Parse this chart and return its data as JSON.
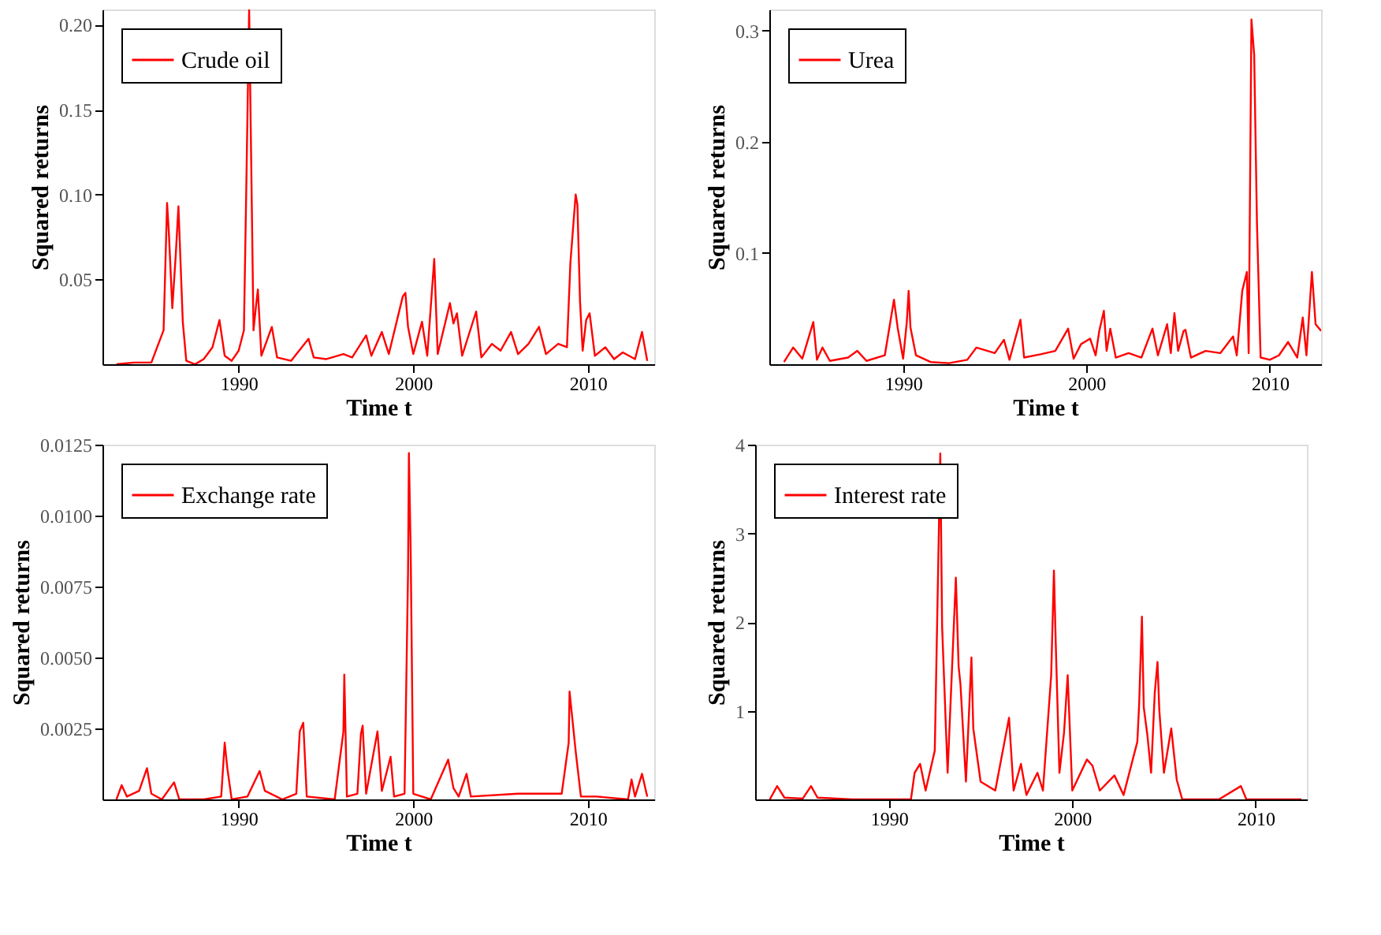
{
  "chart_data": [
    {
      "type": "line",
      "xlabel": "Time t",
      "ylabel": "Squared returns",
      "legend": "top left",
      "grid": false,
      "xlim": [
        1982.2,
        2013.8
      ],
      "xticks": [
        1990,
        2000,
        2010
      ],
      "ylim": [
        0,
        0.209
      ],
      "yticks": [
        0.05,
        {
          "value": 0.1,
          "label": "0.10"
        },
        0.15,
        {
          "value": 0.2,
          "label": "0.20"
        }
      ],
      "series": [
        {
          "name": "Crude oil",
          "color": "#ff0000",
          "x": [
            1983.0,
            1984.0,
            1985.0,
            1985.7,
            1985.9,
            1986.0,
            1986.2,
            1986.4,
            1986.55,
            1986.8,
            1987.0,
            1987.5,
            1988.0,
            1988.5,
            1988.9,
            1989.2,
            1989.6,
            1990.0,
            1990.3,
            1990.45,
            1990.6,
            1990.7,
            1990.85,
            1991.0,
            1991.1,
            1991.3,
            1991.9,
            1992.2,
            1993.0,
            1994.0,
            1994.3,
            1995.0,
            1996.0,
            1996.5,
            1997.3,
            1997.6,
            1998.2,
            1998.6,
            1999.4,
            1999.55,
            1999.7,
            2000.0,
            2000.5,
            2000.8,
            2001.2,
            2001.4,
            2002.1,
            2002.3,
            2002.5,
            2002.8,
            2003.6,
            2003.9,
            2004.5,
            2005.0,
            2005.6,
            2006.0,
            2006.6,
            2007.2,
            2007.6,
            2008.3,
            2008.8,
            2009.0,
            2009.3,
            2009.4,
            2009.55,
            2009.7,
            2009.9,
            2010.1,
            2010.4,
            2011.0,
            2011.5,
            2012.0,
            2012.7,
            2013.1,
            2013.4
          ],
          "values": [
            0.0,
            0.001,
            0.001,
            0.02,
            0.095,
            0.078,
            0.033,
            0.065,
            0.093,
            0.025,
            0.002,
            0.0,
            0.003,
            0.01,
            0.026,
            0.005,
            0.002,
            0.008,
            0.02,
            0.112,
            0.209,
            0.133,
            0.02,
            0.035,
            0.044,
            0.005,
            0.022,
            0.004,
            0.002,
            0.015,
            0.004,
            0.003,
            0.006,
            0.004,
            0.017,
            0.005,
            0.019,
            0.006,
            0.04,
            0.042,
            0.022,
            0.006,
            0.025,
            0.005,
            0.062,
            0.006,
            0.036,
            0.024,
            0.03,
            0.005,
            0.031,
            0.004,
            0.012,
            0.008,
            0.019,
            0.006,
            0.012,
            0.022,
            0.006,
            0.012,
            0.01,
            0.06,
            0.1,
            0.094,
            0.037,
            0.008,
            0.026,
            0.03,
            0.005,
            0.01,
            0.003,
            0.007,
            0.003,
            0.019,
            0.002
          ]
        }
      ]
    },
    {
      "type": "line",
      "xlabel": "Time t",
      "ylabel": "Squared returns",
      "legend": "top left",
      "grid": false,
      "xlim": [
        1982.7,
        2012.8
      ],
      "xticks": [
        1990,
        2000,
        2010
      ],
      "ylim": [
        0,
        0.319
      ],
      "yticks": [
        0.1,
        0.2,
        0.3
      ],
      "series": [
        {
          "name": "Urea",
          "color": "#ff0000",
          "x": [
            1983.5,
            1984.0,
            1984.5,
            1985.1,
            1985.3,
            1985.6,
            1986.0,
            1987.0,
            1987.5,
            1988.0,
            1989.0,
            1989.5,
            1989.7,
            1990.0,
            1990.2,
            1990.3,
            1990.4,
            1990.7,
            1991.5,
            1992.5,
            1993.5,
            1994.0,
            1995.0,
            1995.5,
            1995.8,
            1996.4,
            1996.6,
            1997.5,
            1998.3,
            1999.0,
            1999.3,
            1999.7,
            2000.2,
            2000.5,
            2000.7,
            2000.95,
            2001.1,
            2001.3,
            2001.6,
            2002.3,
            2003.0,
            2003.6,
            2003.9,
            2004.4,
            2004.6,
            2004.8,
            2005.0,
            2005.3,
            2005.4,
            2005.7,
            2006.5,
            2007.3,
            2008.0,
            2008.2,
            2008.5,
            2008.75,
            2008.85,
            2009.0,
            2009.15,
            2009.3,
            2009.5,
            2010.0,
            2010.5,
            2011.0,
            2011.5,
            2011.8,
            2012.0,
            2012.3,
            2012.5,
            2012.8
          ],
          "values": [
            0.002,
            0.015,
            0.005,
            0.038,
            0.004,
            0.015,
            0.003,
            0.006,
            0.012,
            0.003,
            0.008,
            0.058,
            0.033,
            0.005,
            0.038,
            0.066,
            0.033,
            0.008,
            0.002,
            0.001,
            0.004,
            0.015,
            0.01,
            0.022,
            0.004,
            0.04,
            0.006,
            0.009,
            0.012,
            0.032,
            0.005,
            0.018,
            0.023,
            0.008,
            0.03,
            0.048,
            0.012,
            0.032,
            0.006,
            0.01,
            0.006,
            0.032,
            0.008,
            0.036,
            0.01,
            0.046,
            0.012,
            0.03,
            0.031,
            0.006,
            0.012,
            0.01,
            0.025,
            0.008,
            0.066,
            0.083,
            0.01,
            0.31,
            0.278,
            0.128,
            0.006,
            0.004,
            0.008,
            0.02,
            0.006,
            0.042,
            0.008,
            0.083,
            0.036,
            0.03
          ]
        }
      ]
    },
    {
      "type": "line",
      "xlabel": "Time t",
      "ylabel": "Squared returns",
      "legend": "top left",
      "grid": false,
      "xlim": [
        1982.2,
        2013.8
      ],
      "xticks": [
        1990,
        2000,
        2010
      ],
      "ylim": [
        0,
        0.0125
      ],
      "yticks": [
        0.0025,
        {
          "value": 0.005,
          "label": "0.0050"
        },
        {
          "value": 0.0075,
          "label": "0.0075"
        },
        {
          "value": 0.01,
          "label": "0.0100"
        },
        {
          "value": 0.0125,
          "label": "0.0125"
        }
      ],
      "series": [
        {
          "name": "Exchange rate",
          "color": "#ff0000",
          "x": [
            1983.0,
            1983.3,
            1983.6,
            1984.3,
            1984.75,
            1985.0,
            1985.6,
            1986.3,
            1986.6,
            1988.0,
            1989.0,
            1989.2,
            1989.35,
            1989.6,
            1990.5,
            1991.2,
            1991.5,
            1992.5,
            1993.3,
            1993.5,
            1993.7,
            1993.9,
            1995.5,
            1996.0,
            1996.05,
            1996.2,
            1996.8,
            1997.0,
            1997.1,
            1997.3,
            1997.95,
            1998.2,
            1998.7,
            1998.9,
            1999.5,
            1999.7,
            1999.75,
            1999.85,
            2000.0,
            2001.0,
            2002.0,
            2002.3,
            2002.6,
            2003.05,
            2003.3,
            2006.0,
            2008.5,
            2008.9,
            2008.95,
            2009.15,
            2009.3,
            2009.6,
            2010.5,
            2012.3,
            2012.5,
            2012.7,
            2013.1,
            2013.4
          ],
          "values": [
            0.0,
            0.0005,
            0.0001,
            0.0003,
            0.0011,
            0.0002,
            0.0,
            0.0006,
            0.0,
            0.0,
            0.0001,
            0.002,
            0.0011,
            0.0,
            0.0001,
            0.001,
            0.0003,
            0.0,
            0.0002,
            0.0024,
            0.0027,
            0.0001,
            0.0,
            0.0024,
            0.0044,
            0.0001,
            0.0002,
            0.0023,
            0.0026,
            0.0002,
            0.0024,
            0.0003,
            0.0015,
            0.0001,
            0.0002,
            0.008,
            0.0122,
            0.0088,
            0.0002,
            0.0,
            0.0014,
            0.0004,
            0.0001,
            0.0009,
            0.0001,
            0.0002,
            0.0002,
            0.002,
            0.0038,
            0.0026,
            0.0017,
            0.0001,
            0.0001,
            0.0,
            0.0007,
            0.0001,
            0.0009,
            0.0001
          ]
        }
      ]
    },
    {
      "type": "line",
      "xlabel": "Time t",
      "ylabel": "Squared returns",
      "legend": "top left",
      "grid": false,
      "xlim": [
        1982.7,
        2012.8
      ],
      "xticks": [
        1990,
        2000,
        2010
      ],
      "ylim": [
        0,
        4
      ],
      "yticks": [
        1,
        2,
        3,
        4
      ],
      "series": [
        {
          "name": "Interest rate",
          "color": "#ff0000",
          "x": [
            1983.5,
            1983.9,
            1984.3,
            1985.3,
            1985.75,
            1986.1,
            1988.0,
            1991.2,
            1991.4,
            1991.7,
            1992.0,
            1992.5,
            1992.8,
            1992.9,
            1993.2,
            1993.65,
            1993.8,
            1993.9,
            1994.2,
            1994.5,
            1994.6,
            1995.0,
            1995.8,
            1996.55,
            1996.8,
            1997.2,
            1997.5,
            1998.1,
            1998.4,
            1998.85,
            1999.0,
            1999.1,
            1999.3,
            1999.55,
            1999.75,
            2000.0,
            2000.8,
            2001.1,
            2001.5,
            2002.3,
            2002.8,
            2003.55,
            2003.65,
            2003.8,
            2003.9,
            2004.1,
            2004.3,
            2004.5,
            2004.65,
            2004.75,
            2005.0,
            2005.4,
            2005.7,
            2006.0,
            2008.0,
            2009.2,
            2009.5,
            2012.5
          ],
          "values": [
            0.0,
            0.15,
            0.02,
            0.01,
            0.15,
            0.02,
            0.0,
            0.0,
            0.3,
            0.4,
            0.1,
            0.55,
            3.9,
            1.95,
            0.3,
            2.5,
            1.5,
            1.3,
            0.2,
            1.6,
            0.8,
            0.2,
            0.1,
            0.92,
            0.1,
            0.4,
            0.05,
            0.3,
            0.1,
            1.4,
            2.58,
            1.75,
            0.3,
            0.75,
            1.4,
            0.1,
            0.45,
            0.38,
            0.1,
            0.27,
            0.05,
            0.65,
            1.08,
            2.06,
            1.04,
            0.72,
            0.3,
            1.2,
            1.55,
            1.0,
            0.3,
            0.8,
            0.22,
            0.0,
            0.0,
            0.15,
            0.0,
            0.0
          ]
        }
      ]
    }
  ]
}
